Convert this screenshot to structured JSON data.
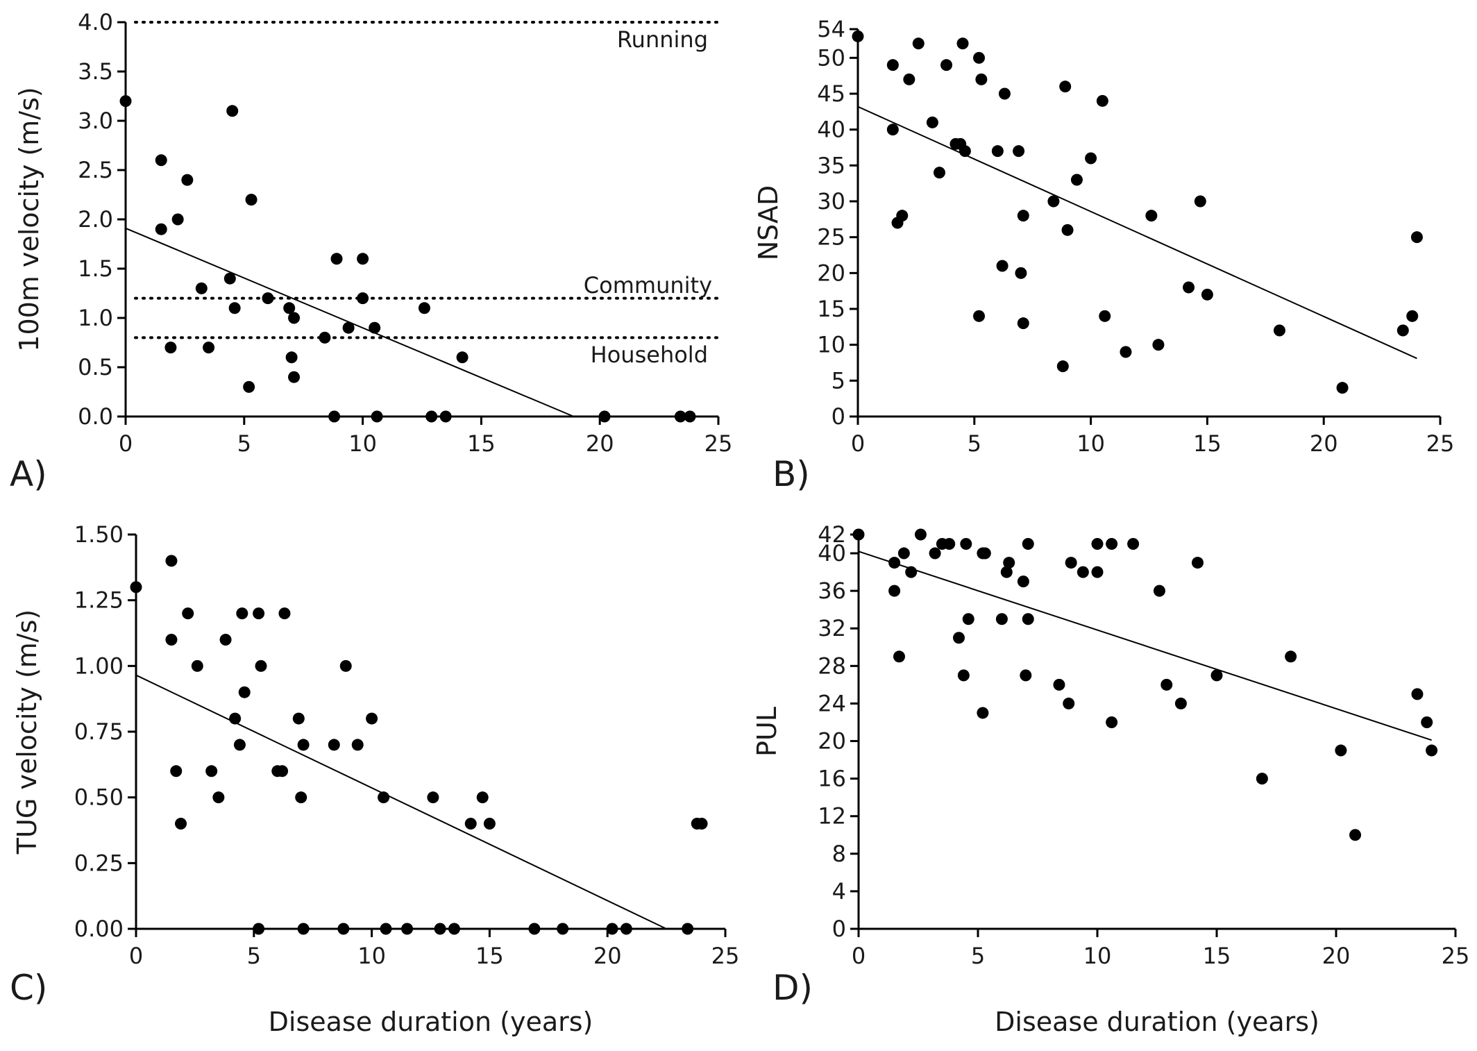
{
  "colors": {
    "points": "#000000",
    "lines": "#000000",
    "background": "#ffffff"
  },
  "chart_data": [
    {
      "id": "A",
      "panel_label": "A)",
      "type": "scatter",
      "xlabel": "",
      "ylabel": "100m velocity (m/s)",
      "xlim": [
        0,
        25
      ],
      "ylim": [
        0,
        4
      ],
      "xticks": [
        0,
        5,
        10,
        15,
        20,
        25
      ],
      "xtick_labels": [
        "0",
        "5",
        "10",
        "15",
        "20",
        "25"
      ],
      "yticks": [
        0,
        0.5,
        1,
        1.5,
        2,
        2.5,
        3,
        3.5,
        4
      ],
      "ytick_labels": [
        "0.0",
        "0.5",
        "1.0",
        "1.5",
        "2.0",
        "2.5",
        "3.0",
        "3.5",
        "4.0"
      ],
      "points": [
        [
          0,
          3.2
        ],
        [
          1.5,
          2.6
        ],
        [
          1.5,
          1.9
        ],
        [
          1.9,
          0.7
        ],
        [
          2.2,
          2.0
        ],
        [
          2.6,
          2.4
        ],
        [
          3.2,
          1.3
        ],
        [
          3.5,
          0.7
        ],
        [
          4.4,
          1.4
        ],
        [
          4.5,
          3.1
        ],
        [
          4.6,
          1.1
        ],
        [
          5.2,
          0.3
        ],
        [
          5.3,
          2.2
        ],
        [
          6.0,
          1.2
        ],
        [
          6.9,
          1.1
        ],
        [
          7.0,
          0.6
        ],
        [
          7.1,
          1.0
        ],
        [
          7.1,
          0.4
        ],
        [
          8.4,
          0.8
        ],
        [
          8.8,
          0.0
        ],
        [
          8.9,
          1.6
        ],
        [
          9.4,
          0.9
        ],
        [
          10.0,
          1.6
        ],
        [
          10.0,
          1.2
        ],
        [
          10.5,
          0.9
        ],
        [
          10.6,
          0.0
        ],
        [
          12.6,
          1.1
        ],
        [
          12.9,
          0.0
        ],
        [
          13.5,
          0.0
        ],
        [
          14.2,
          0.6
        ],
        [
          20.2,
          0.0
        ],
        [
          23.4,
          0.0
        ],
        [
          23.8,
          0.0
        ]
      ],
      "trend": [
        [
          0,
          1.91
        ],
        [
          18.9,
          0.0
        ]
      ],
      "reference_lines": [
        {
          "label": "Running",
          "y": 4.0
        },
        {
          "label": "Community",
          "y": 1.2
        },
        {
          "label": "Household",
          "y": 0.8
        }
      ]
    },
    {
      "id": "B",
      "panel_label": "B)",
      "type": "scatter",
      "xlabel": "",
      "ylabel": "NSAD",
      "xlim": [
        0,
        25
      ],
      "ylim": [
        0,
        54
      ],
      "xticks": [
        0,
        5,
        10,
        15,
        20,
        25
      ],
      "xtick_labels": [
        "0",
        "5",
        "10",
        "15",
        "20",
        "25"
      ],
      "yticks": [
        0,
        5,
        10,
        15,
        20,
        25,
        30,
        35,
        40,
        45,
        50,
        54
      ],
      "ytick_labels": [
        "0",
        "5",
        "10",
        "15",
        "20",
        "25",
        "30",
        "35",
        "40",
        "45",
        "50",
        "54"
      ],
      "points": [
        [
          0,
          53
        ],
        [
          1.5,
          49
        ],
        [
          1.5,
          40
        ],
        [
          1.7,
          27
        ],
        [
          1.9,
          28
        ],
        [
          2.2,
          47
        ],
        [
          2.6,
          52
        ],
        [
          3.2,
          41
        ],
        [
          3.5,
          34
        ],
        [
          3.8,
          49
        ],
        [
          4.2,
          38
        ],
        [
          4.4,
          38
        ],
        [
          4.5,
          52
        ],
        [
          4.6,
          37
        ],
        [
          5.2,
          50
        ],
        [
          5.2,
          14
        ],
        [
          5.3,
          47
        ],
        [
          6.0,
          37
        ],
        [
          6.2,
          21
        ],
        [
          6.3,
          45
        ],
        [
          6.9,
          37
        ],
        [
          7.0,
          20
        ],
        [
          7.1,
          28
        ],
        [
          7.1,
          13
        ],
        [
          8.4,
          30
        ],
        [
          8.8,
          7
        ],
        [
          8.9,
          46
        ],
        [
          9.0,
          26
        ],
        [
          9.4,
          33
        ],
        [
          10.0,
          36
        ],
        [
          10.5,
          44
        ],
        [
          10.6,
          14
        ],
        [
          11.5,
          9
        ],
        [
          12.6,
          28
        ],
        [
          12.9,
          10
        ],
        [
          14.2,
          18
        ],
        [
          14.7,
          30
        ],
        [
          15.0,
          17
        ],
        [
          18.1,
          12
        ],
        [
          20.8,
          4
        ],
        [
          23.4,
          12
        ],
        [
          23.8,
          14
        ],
        [
          24.0,
          25
        ]
      ],
      "trend": [
        [
          0,
          43.2
        ],
        [
          24.0,
          8.1
        ]
      ]
    },
    {
      "id": "C",
      "panel_label": "C)",
      "type": "scatter",
      "xlabel": "Disease duration (years)",
      "ylabel": "TUG velocity (m/s)",
      "xlim": [
        0,
        25
      ],
      "ylim": [
        0,
        1.5
      ],
      "xticks": [
        0,
        5,
        10,
        15,
        20,
        25
      ],
      "xtick_labels": [
        "0",
        "5",
        "10",
        "15",
        "20",
        "25"
      ],
      "yticks": [
        0,
        0.25,
        0.5,
        0.75,
        1.0,
        1.25,
        1.5
      ],
      "ytick_labels": [
        "0.00",
        "0.25",
        "0.50",
        "0.75",
        "1.00",
        "1.25",
        "1.50"
      ],
      "points": [
        [
          0,
          1.3
        ],
        [
          1.5,
          1.4
        ],
        [
          1.5,
          1.1
        ],
        [
          1.7,
          0.6
        ],
        [
          1.9,
          0.4
        ],
        [
          2.2,
          1.2
        ],
        [
          2.6,
          1.0
        ],
        [
          3.2,
          0.6
        ],
        [
          3.5,
          0.5
        ],
        [
          3.8,
          1.1
        ],
        [
          4.2,
          0.8
        ],
        [
          4.4,
          0.7
        ],
        [
          4.5,
          1.2
        ],
        [
          4.6,
          0.9
        ],
        [
          5.2,
          1.2
        ],
        [
          5.2,
          0.0
        ],
        [
          5.3,
          1.0
        ],
        [
          6.0,
          0.6
        ],
        [
          6.2,
          0.6
        ],
        [
          6.3,
          1.2
        ],
        [
          6.9,
          0.8
        ],
        [
          7.0,
          0.5
        ],
        [
          7.1,
          0.7
        ],
        [
          7.1,
          0.0
        ],
        [
          8.4,
          0.7
        ],
        [
          8.8,
          0.0
        ],
        [
          8.9,
          1.0
        ],
        [
          9.4,
          0.7
        ],
        [
          10.0,
          0.8
        ],
        [
          10.5,
          0.5
        ],
        [
          10.6,
          0.0
        ],
        [
          11.5,
          0.0
        ],
        [
          12.6,
          0.5
        ],
        [
          12.9,
          0.0
        ],
        [
          13.5,
          0.0
        ],
        [
          14.2,
          0.4
        ],
        [
          14.7,
          0.5
        ],
        [
          15.0,
          0.4
        ],
        [
          16.9,
          0.0
        ],
        [
          18.1,
          0.0
        ],
        [
          20.2,
          0.0
        ],
        [
          20.8,
          0.0
        ],
        [
          23.4,
          0.0
        ],
        [
          23.8,
          0.4
        ],
        [
          24.0,
          0.4
        ]
      ],
      "trend": [
        [
          0,
          0.965
        ],
        [
          22.5,
          0.0
        ]
      ]
    },
    {
      "id": "D",
      "panel_label": "D)",
      "type": "scatter",
      "xlabel": "Disease duration (years)",
      "ylabel": "PUL",
      "xlim": [
        0,
        25
      ],
      "ylim": [
        0,
        42
      ],
      "xticks": [
        0,
        5,
        10,
        15,
        20,
        25
      ],
      "xtick_labels": [
        "0",
        "5",
        "10",
        "15",
        "20",
        "25"
      ],
      "yticks": [
        0,
        4,
        8,
        12,
        16,
        20,
        24,
        28,
        32,
        36,
        40,
        42
      ],
      "ytick_labels": [
        "0",
        "4",
        "8",
        "12",
        "16",
        "20",
        "24",
        "28",
        "32",
        "36",
        "40",
        "42"
      ],
      "points": [
        [
          0,
          42
        ],
        [
          1.5,
          39
        ],
        [
          1.5,
          36
        ],
        [
          1.7,
          29
        ],
        [
          1.9,
          40
        ],
        [
          2.2,
          38
        ],
        [
          2.6,
          42
        ],
        [
          3.2,
          40
        ],
        [
          3.5,
          41
        ],
        [
          3.8,
          41
        ],
        [
          4.2,
          31
        ],
        [
          4.4,
          27
        ],
        [
          4.5,
          41
        ],
        [
          4.6,
          33
        ],
        [
          5.2,
          40
        ],
        [
          5.2,
          23
        ],
        [
          5.3,
          40
        ],
        [
          6.0,
          33
        ],
        [
          6.2,
          38
        ],
        [
          6.3,
          39
        ],
        [
          6.9,
          37
        ],
        [
          7.0,
          27
        ],
        [
          7.1,
          41
        ],
        [
          7.1,
          33
        ],
        [
          8.4,
          26
        ],
        [
          8.8,
          24
        ],
        [
          8.9,
          39
        ],
        [
          9.4,
          38
        ],
        [
          10.0,
          41
        ],
        [
          10.0,
          38
        ],
        [
          10.6,
          41
        ],
        [
          10.6,
          22
        ],
        [
          11.5,
          41
        ],
        [
          12.6,
          36
        ],
        [
          12.9,
          26
        ],
        [
          13.5,
          24
        ],
        [
          14.2,
          39
        ],
        [
          15.0,
          27
        ],
        [
          16.9,
          16
        ],
        [
          18.1,
          29
        ],
        [
          20.2,
          19
        ],
        [
          20.8,
          10
        ],
        [
          23.4,
          25
        ],
        [
          23.8,
          22
        ],
        [
          24.0,
          19
        ]
      ],
      "trend": [
        [
          0,
          40.2
        ],
        [
          24.0,
          20.1
        ]
      ]
    }
  ]
}
